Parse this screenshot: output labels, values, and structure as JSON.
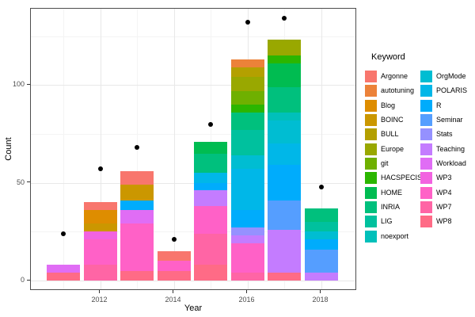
{
  "figure": {
    "x_axis": {
      "title": "Year",
      "tick_labels": [
        "2012",
        "2014",
        "2016",
        "2018"
      ]
    },
    "y_axis": {
      "title": "Count",
      "tick_labels": [
        "0",
        "50",
        "100"
      ]
    },
    "legend": {
      "title": "Keyword"
    }
  },
  "chart_data": {
    "type": "bar",
    "stacked": true,
    "title": "",
    "xlabel": "Year",
    "ylabel": "Count",
    "x": [
      2011,
      2012,
      2013,
      2014,
      2015,
      2016,
      2017,
      2018
    ],
    "ylim": [
      0,
      139
    ],
    "y_major_ticks": [
      0,
      50,
      100
    ],
    "y_minor_ticks": [
      25,
      75,
      125
    ],
    "x_major_ticks": [
      2012,
      2014,
      2016,
      2018
    ],
    "x_minor_ticks": [
      2011,
      2013,
      2015,
      2017
    ],
    "grid": true,
    "legend_position": "right",
    "legend_title": "Keyword",
    "bar_totals": [
      8,
      40,
      56,
      15,
      71,
      113,
      123,
      37
    ],
    "points": {
      "name": "yearly-total-dots",
      "color": "#000000",
      "values": [
        24,
        57,
        68,
        21,
        80,
        132,
        134,
        48
      ]
    },
    "stack_note": "stacked bottom-to-top in reverse series order (WP8 at bottom, Argonne on top)",
    "series": [
      {
        "name": "Argonne",
        "color": "#F8766D",
        "values": [
          0,
          4,
          7,
          5,
          0,
          0,
          0,
          0
        ]
      },
      {
        "name": "autotuning",
        "color": "#EC8239",
        "values": [
          0,
          0,
          0,
          0,
          0,
          4,
          0,
          0
        ]
      },
      {
        "name": "Blog",
        "color": "#DE8D00",
        "values": [
          0,
          7,
          0,
          0,
          0,
          0,
          0,
          0
        ]
      },
      {
        "name": "BOINC",
        "color": "#CB9700",
        "values": [
          0,
          4,
          8,
          0,
          0,
          0,
          0,
          0
        ]
      },
      {
        "name": "BULL",
        "color": "#B4A000",
        "values": [
          0,
          0,
          0,
          0,
          0,
          5,
          0,
          0
        ]
      },
      {
        "name": "Europe",
        "color": "#99A800",
        "values": [
          0,
          0,
          0,
          0,
          0,
          7,
          8,
          0
        ]
      },
      {
        "name": "git",
        "color": "#6FB000",
        "values": [
          0,
          0,
          0,
          0,
          0,
          7,
          0,
          0
        ]
      },
      {
        "name": "HACSPECIS",
        "color": "#2BB600",
        "values": [
          0,
          0,
          0,
          0,
          0,
          4,
          4,
          0
        ]
      },
      {
        "name": "HOME",
        "color": "#00BC51",
        "values": [
          0,
          0,
          0,
          0,
          6,
          0,
          12,
          0
        ]
      },
      {
        "name": "INRIA",
        "color": "#00C07D",
        "values": [
          0,
          0,
          0,
          0,
          10,
          9,
          13,
          7
        ]
      },
      {
        "name": "LIG",
        "color": "#00C19E",
        "values": [
          0,
          0,
          0,
          0,
          0,
          13,
          0,
          5
        ]
      },
      {
        "name": "noexport",
        "color": "#00C0BA",
        "values": [
          0,
          0,
          0,
          0,
          0,
          0,
          4,
          0
        ]
      },
      {
        "name": "OrgMode",
        "color": "#00BDD2",
        "values": [
          0,
          0,
          0,
          0,
          0,
          7,
          12,
          4
        ]
      },
      {
        "name": "POLARIS",
        "color": "#00B7E8",
        "values": [
          0,
          0,
          0,
          0,
          5,
          21,
          11,
          0
        ]
      },
      {
        "name": "R",
        "color": "#00ACFC",
        "values": [
          0,
          0,
          5,
          0,
          4,
          9,
          18,
          5
        ]
      },
      {
        "name": "Seminar",
        "color": "#559EFF",
        "values": [
          0,
          0,
          0,
          0,
          0,
          0,
          15,
          12
        ]
      },
      {
        "name": "Stats",
        "color": "#9591FF",
        "values": [
          0,
          0,
          0,
          0,
          0,
          4,
          0,
          0
        ]
      },
      {
        "name": "Teaching",
        "color": "#C47CFF",
        "values": [
          0,
          0,
          0,
          0,
          8,
          4,
          22,
          4
        ]
      },
      {
        "name": "Workload",
        "color": "#E06DF5",
        "values": [
          4,
          0,
          7,
          0,
          0,
          0,
          0,
          0
        ]
      },
      {
        "name": "WP3",
        "color": "#F263E0",
        "values": [
          0,
          4,
          0,
          0,
          0,
          0,
          0,
          0
        ]
      },
      {
        "name": "WP4",
        "color": "#FF61C7",
        "values": [
          0,
          13,
          24,
          5,
          14,
          15,
          0,
          0
        ]
      },
      {
        "name": "WP7",
        "color": "#FF65A5",
        "values": [
          0,
          8,
          0,
          0,
          16,
          4,
          0,
          0
        ]
      },
      {
        "name": "WP8",
        "color": "#FF6B86",
        "values": [
          4,
          0,
          5,
          5,
          8,
          0,
          4,
          0
        ]
      }
    ]
  }
}
